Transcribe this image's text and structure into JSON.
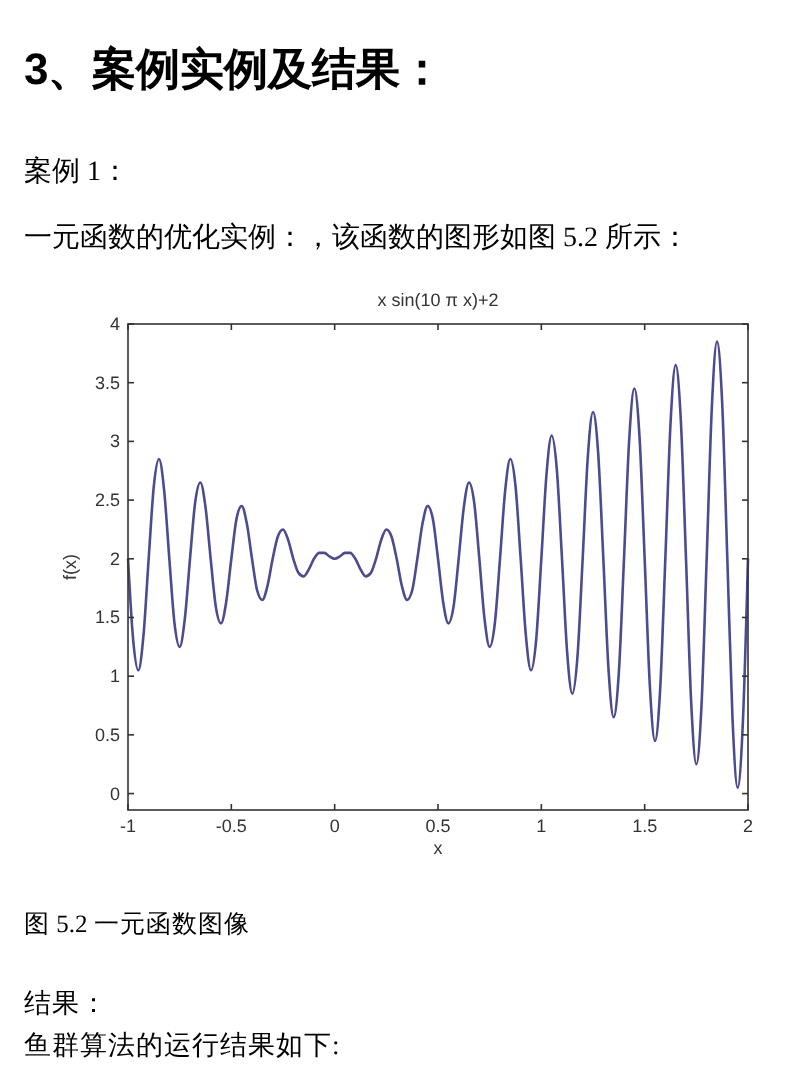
{
  "chart_data": {
    "type": "line",
    "title": "x sin(10 π x)+2",
    "xlabel": "x",
    "ylabel": "f(x)",
    "annotations": [
      "3、案例实例及结果：",
      "案例 1：",
      "一元函数的优化实例：，该函数的图形如图 5.2 所示：",
      "图 5.2  一元函数图像",
      "结果：",
      "鱼群算法的运行结果如下:"
    ],
    "x": [
      -1,
      -0.975,
      -0.95,
      -0.925,
      -0.9,
      -0.875,
      -0.85,
      -0.825,
      -0.8,
      -0.775,
      -0.75,
      -0.725,
      -0.7,
      -0.675,
      -0.65,
      -0.625,
      -0.6,
      -0.575,
      -0.55,
      -0.525,
      -0.5,
      -0.475,
      -0.45,
      -0.425,
      -0.4,
      -0.375,
      -0.35,
      -0.325,
      -0.3,
      -0.275,
      -0.25,
      -0.225,
      -0.2,
      -0.175,
      -0.15,
      -0.125,
      -0.1,
      -0.075,
      -0.05,
      -0.025,
      0,
      0.025,
      0.05,
      0.075,
      0.1,
      0.125,
      0.15,
      0.175,
      0.2,
      0.225,
      0.25,
      0.275,
      0.3,
      0.325,
      0.35,
      0.375,
      0.4,
      0.425,
      0.45,
      0.475,
      0.5,
      0.525,
      0.55,
      0.575,
      0.6,
      0.625,
      0.65,
      0.675,
      0.7,
      0.725,
      0.75,
      0.775,
      0.8,
      0.825,
      0.85,
      0.875,
      0.9,
      0.925,
      0.95,
      0.975,
      1,
      1.025,
      1.05,
      1.075,
      1.1,
      1.125,
      1.15,
      1.175,
      1.2,
      1.225,
      1.25,
      1.275,
      1.3,
      1.325,
      1.35,
      1.375,
      1.4,
      1.425,
      1.45,
      1.475,
      1.5,
      1.525,
      1.55,
      1.575,
      1.6,
      1.625,
      1.65,
      1.675,
      1.7,
      1.725,
      1.75,
      1.775,
      1.8,
      1.825,
      1.85,
      1.875,
      1.9,
      1.925,
      1.95,
      1.975,
      2
    ],
    "series": [
      {
        "color": "#4b4b8f",
        "values": [
          2,
          1.31,
          1.05,
          1.35,
          2,
          2.62,
          2.85,
          2.58,
          2,
          1.45,
          1.25,
          1.49,
          2,
          2.48,
          2.65,
          2.44,
          2,
          1.59,
          1.45,
          1.63,
          2,
          2.34,
          2.45,
          2.3,
          2,
          1.73,
          1.65,
          1.77,
          2,
          2.19,
          2.25,
          2.16,
          2,
          1.88,
          1.85,
          1.91,
          2,
          2.05,
          2.05,
          2.02,
          2,
          2.02,
          2.05,
          2.05,
          2,
          1.91,
          1.85,
          1.88,
          2,
          2.16,
          2.25,
          2.19,
          2,
          1.77,
          1.65,
          1.73,
          2,
          2.3,
          2.45,
          2.34,
          2,
          1.63,
          1.45,
          1.59,
          2,
          2.44,
          2.65,
          2.48,
          2,
          1.49,
          1.25,
          1.45,
          2,
          2.58,
          2.85,
          2.62,
          2,
          1.35,
          1.05,
          1.31,
          2,
          2.72,
          3.05,
          2.76,
          2,
          1.2,
          0.85,
          1.17,
          2,
          2.87,
          3.25,
          2.9,
          2,
          1.06,
          0.65,
          1.03,
          2,
          3.01,
          3.45,
          3.04,
          2,
          0.92,
          0.45,
          0.89,
          2,
          3.15,
          3.65,
          3.18,
          2,
          0.78,
          0.25,
          0.75,
          2,
          3.29,
          3.85,
          3.33,
          2,
          0.64,
          0.05,
          0.6,
          2
        ]
      }
    ],
    "xlim": [
      -1,
      2
    ],
    "xticks": [
      -1,
      {
        "value": -0.5,
        "label": "-0.5"
      },
      0,
      0.5,
      1,
      1.5,
      2
    ],
    "ylim": [
      -0.14,
      4
    ],
    "yticks": [
      0,
      0.5,
      1,
      1.5,
      2,
      2.5,
      3,
      3.5,
      4
    ],
    "grid": false,
    "marker": "none",
    "line_style": "solid"
  }
}
